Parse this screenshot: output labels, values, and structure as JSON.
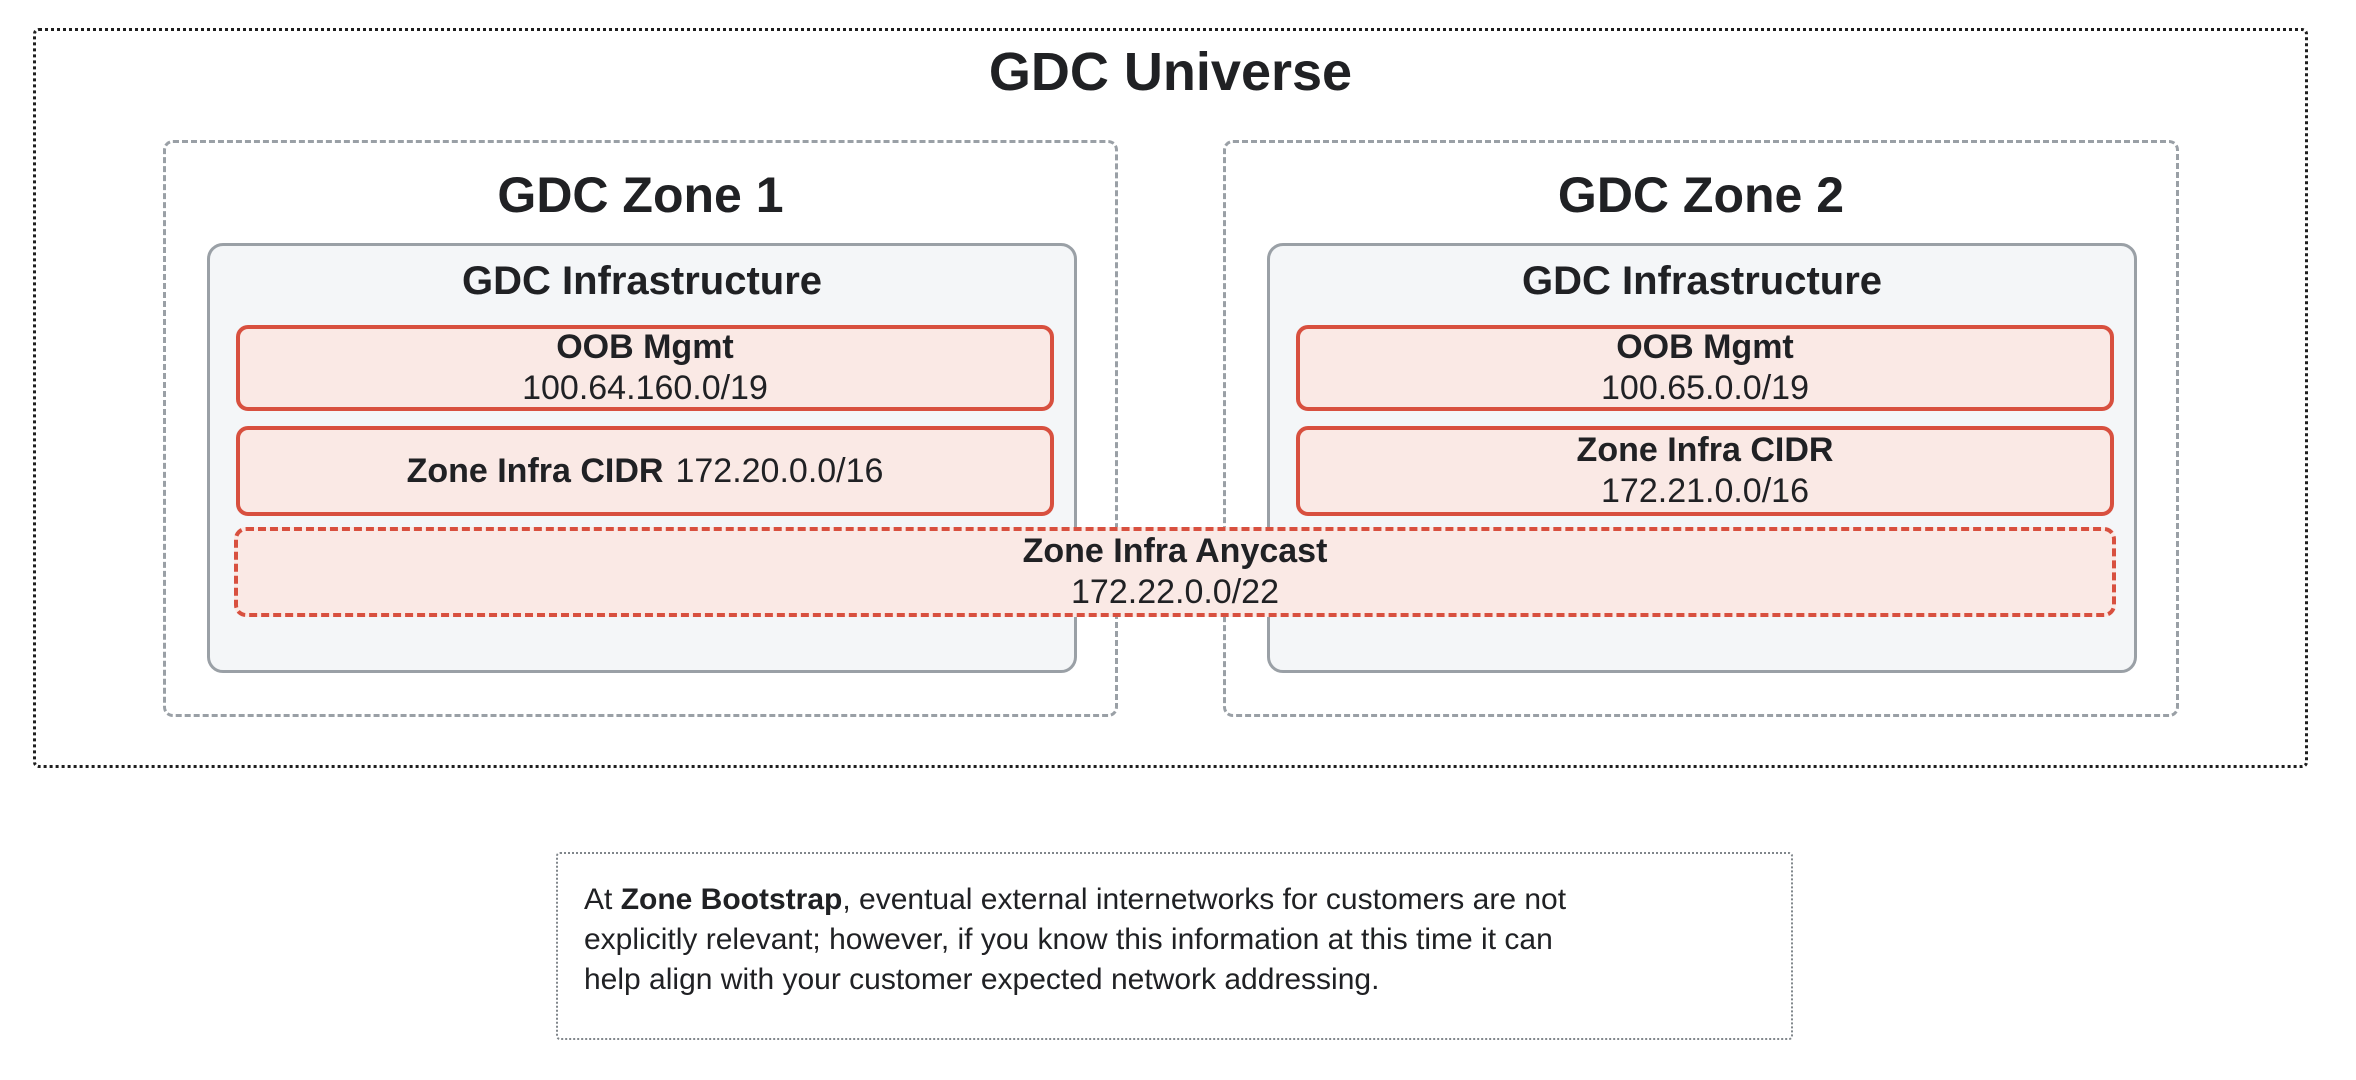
{
  "colors": {
    "accent_red": "#D8503F",
    "accent_red_fill": "#FAE9E5",
    "infrastructure_fill": "#F4F6F8",
    "gray_border": "#9AA0A6",
    "universe_border": "#1F1F1F",
    "note_border": "#80868B",
    "text": "#202124",
    "background": "#FFFFFF"
  },
  "universe": {
    "title": "GDC Universe"
  },
  "zones": [
    {
      "title": "GDC Zone 1",
      "infrastructure_title": "GDC Infrastructure",
      "oob": {
        "label": "OOB Mgmt",
        "cidr": "100.64.160.0/19"
      },
      "infra_cidr": {
        "label": "Zone Infra CIDR",
        "cidr": "172.20.0.0/16"
      }
    },
    {
      "title": "GDC Zone 2",
      "infrastructure_title": "GDC Infrastructure",
      "oob": {
        "label": "OOB Mgmt",
        "cidr": "100.65.0.0/19"
      },
      "infra_cidr": {
        "label": "Zone Infra CIDR",
        "cidr": "172.21.0.0/16"
      }
    }
  ],
  "anycast": {
    "label": "Zone Infra Anycast",
    "cidr": "172.22.0.0/22"
  },
  "note": {
    "line1_prefix": "At ",
    "line1_bold": "Zone Bootstrap",
    "line1_rest": ", eventual external internetworks for customers are not",
    "line2": "explicitly relevant; however, if you know this information at this time it can",
    "line3": "help align with your customer expected network addressing."
  }
}
